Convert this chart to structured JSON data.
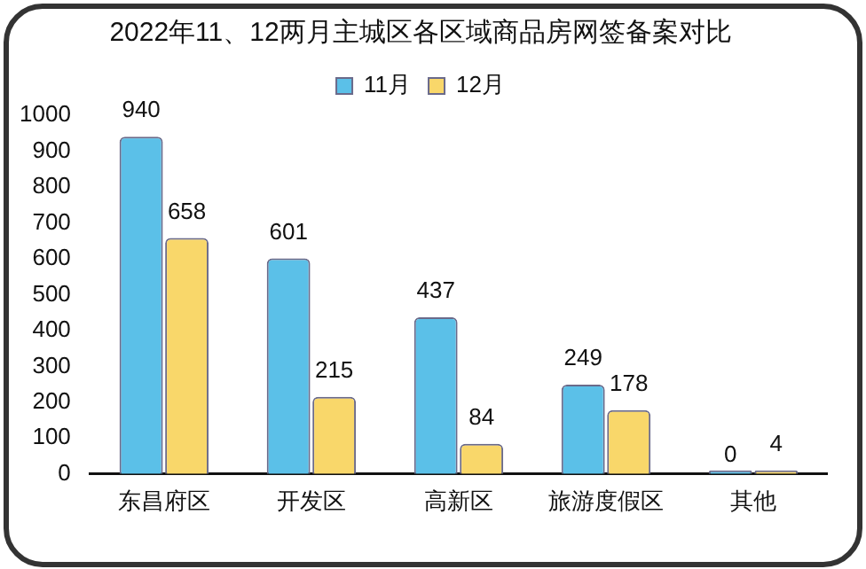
{
  "chart_data": {
    "type": "bar",
    "title": "2022年11、12两月主城区各区域商品房网签备案对比",
    "categories": [
      "东昌府区",
      "开发区",
      "高新区",
      "旅游度假区",
      "其他"
    ],
    "series": [
      {
        "name": "11月",
        "color": "#5bc0e8",
        "values": [
          940,
          601,
          437,
          249,
          0
        ]
      },
      {
        "name": "12月",
        "color": "#f9d76a",
        "values": [
          658,
          215,
          84,
          178,
          4
        ]
      }
    ],
    "ylim": [
      0,
      1000
    ],
    "yticks": [
      0,
      100,
      200,
      300,
      400,
      500,
      600,
      700,
      800,
      900,
      1000
    ],
    "grid": false,
    "legend": "top",
    "data_labels": true
  }
}
